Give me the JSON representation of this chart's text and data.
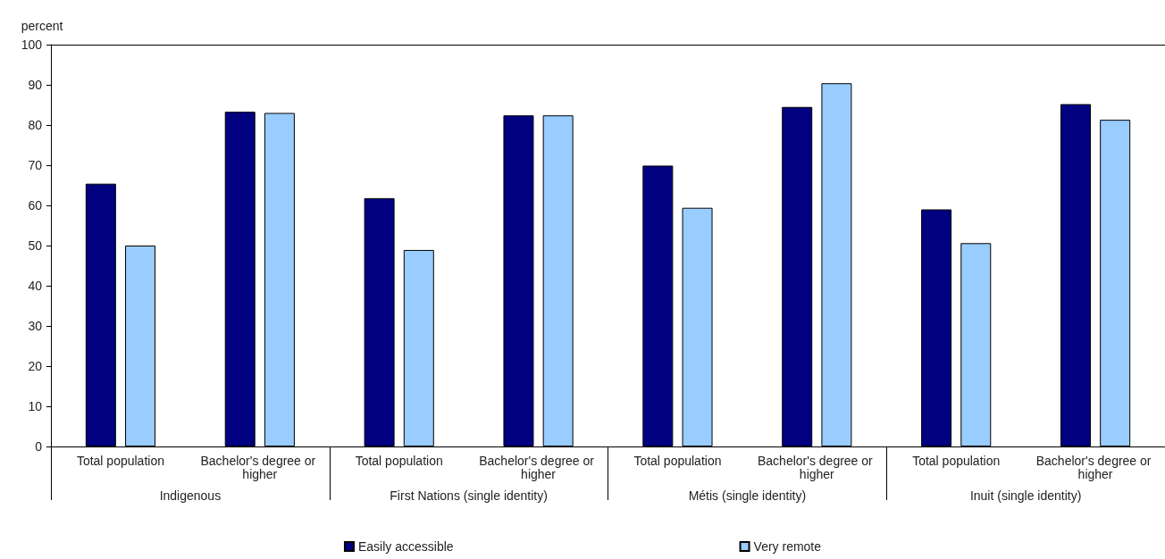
{
  "chart_data": {
    "type": "bar",
    "ylabel": "percent",
    "categories": [
      "Total population",
      "Bachelor's degree or higher",
      "Total population",
      "Bachelor's degree or higher",
      "Total population",
      "Bachelor's degree or higher",
      "Total population",
      "Bachelor's degree or higher"
    ],
    "annotations": [
      "Indigenous",
      "First Nations (single identity)",
      "Métis (single identity)",
      "Inuit (single identity)"
    ],
    "series": [
      {
        "name": "Easily accessible",
        "color": "#000080",
        "values": [
          65.4,
          83.3,
          61.8,
          82.4,
          69.9,
          84.5,
          59.0,
          85.2
        ]
      },
      {
        "name": "Very remote",
        "color": "#99ccff",
        "values": [
          50.0,
          83.0,
          48.9,
          82.4,
          59.4,
          90.4,
          50.6,
          81.3
        ]
      }
    ],
    "ylim": [
      0,
      100
    ],
    "yticks": [
      0,
      10,
      20,
      30,
      40,
      50,
      60,
      70,
      80,
      90,
      100
    ],
    "grid": false,
    "legend": "bottom"
  }
}
